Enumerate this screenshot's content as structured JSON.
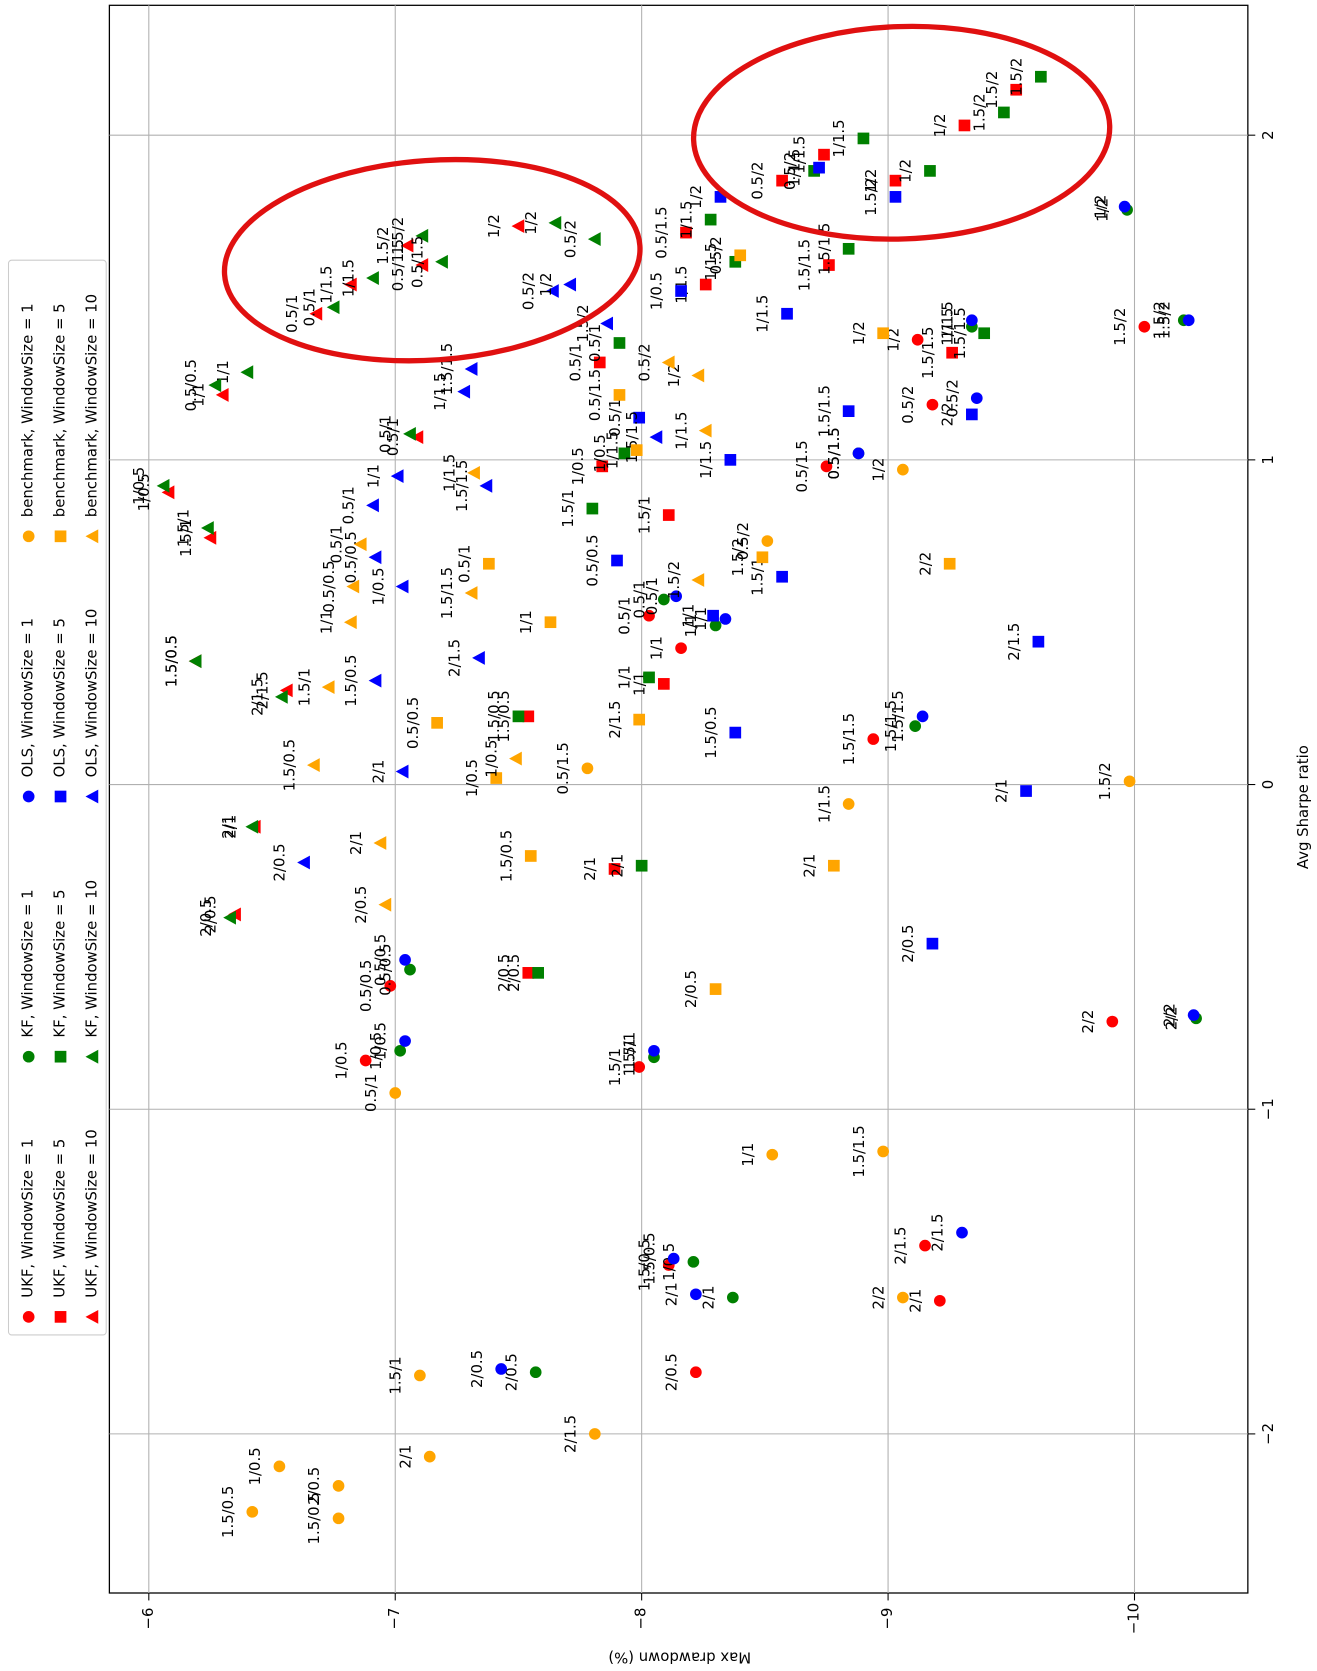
{
  "chart_data": {
    "type": "scatter",
    "xlabel": "Avg Sharpe ratio",
    "ylabel": "Max drawdown (%)",
    "xlim": [
      -2.49,
      2.4
    ],
    "ylim": [
      -5.84,
      -10.46
    ],
    "xticks": [
      {
        "value": -2,
        "label": "−2"
      },
      {
        "value": -1,
        "label": "−1"
      },
      0,
      1,
      2
    ],
    "yticks": [
      {
        "value": -6,
        "label": "−6"
      },
      {
        "value": -7,
        "label": "−7"
      },
      {
        "value": -8,
        "label": "−8"
      },
      {
        "value": -9,
        "label": "−9"
      },
      {
        "value": -10,
        "label": "−10"
      }
    ],
    "grid": true,
    "legend": "upper left",
    "series": [
      {
        "name": "UKF, WindowSize = 1",
        "color": "#ff0000",
        "marker": "o",
        "labels": [
          "2/0.5",
          "1.5/0.5",
          "2/1",
          "2/1.5",
          "1/0.5",
          "0.5/0.5",
          "1.5/1",
          "2/2",
          "1/1",
          "0.5/1",
          "1.5/1.5",
          "1/2",
          "0.5/2",
          "1.5/2",
          "0.5/1.5"
        ],
        "x": [
          -1.81,
          -1.48,
          -1.59,
          -1.42,
          -0.85,
          -0.62,
          -0.87,
          -0.73,
          0.42,
          0.52,
          0.14,
          1.37,
          1.17,
          1.41,
          0.98
        ],
        "values": [
          -8.22,
          -8.11,
          -9.21,
          -9.15,
          -6.88,
          -6.98,
          -7.99,
          -9.91,
          -8.16,
          -8.03,
          -8.94,
          -9.12,
          -9.18,
          -10.04,
          -8.75
        ]
      },
      {
        "name": "UKF, WindowSize = 5",
        "color": "#ff0000",
        "marker": "s",
        "labels": [
          "2/0.5",
          "2/1",
          "1.5/0.5",
          "1/1",
          "1.5/1",
          "1/0.5",
          "0.5/1",
          "1/1.5",
          "0.5/1.5",
          "1.5/1.5",
          "0.5/2",
          "1/1.5",
          "1/2",
          "1/2",
          "1.5/2",
          "1.5/1.5"
        ],
        "x": [
          -0.58,
          -0.26,
          0.21,
          0.31,
          0.83,
          0.98,
          1.3,
          1.54,
          1.7,
          1.6,
          1.86,
          1.94,
          1.86,
          2.03,
          2.14,
          1.33
        ],
        "values": [
          -7.54,
          -7.89,
          -7.54,
          -8.09,
          -8.11,
          -7.84,
          -7.83,
          -8.26,
          -8.18,
          -8.76,
          -8.57,
          -8.74,
          -9.03,
          -9.31,
          -9.52,
          -9.26
        ]
      },
      {
        "name": "UKF, WindowSize = 10",
        "color": "#ff0000",
        "marker": "^",
        "labels": [
          "0.5/1",
          "1/1.5",
          "1.5/2",
          "0.5/1.5",
          "1/2",
          "1/0.5",
          "1.5/1",
          "1.5/0.5",
          "2/1.5",
          "2/1",
          "2/0.5",
          "1/1",
          "0.5/1"
        ],
        "x": [
          1.45,
          1.54,
          1.66,
          1.6,
          1.72,
          0.9,
          0.76,
          0.38,
          0.29,
          -0.13,
          -0.4,
          1.2,
          1.07
        ],
        "values": [
          -6.68,
          -6.82,
          -7.05,
          -7.11,
          -7.5,
          -6.08,
          -6.25,
          -6.19,
          -6.56,
          -6.43,
          -6.35,
          -6.3,
          -7.09
        ]
      },
      {
        "name": "KF, WindowSize = 1",
        "color": "#008000",
        "marker": "o",
        "labels": [
          "2/0.5",
          "1/0.5",
          "2/1",
          "1/0.5",
          "0.5/0.5",
          "1.5/1",
          "2/2",
          "1/1",
          "0.5/1",
          "1.5/1.5",
          "1/2",
          "1/1.5",
          "1.5/2",
          "0.5/1.5"
        ],
        "x": [
          -1.81,
          -1.47,
          -1.58,
          -0.82,
          -0.57,
          -0.84,
          -0.72,
          0.49,
          0.57,
          0.18,
          1.77,
          1.41,
          1.43,
          1.02
        ],
        "values": [
          -7.57,
          -8.21,
          -8.37,
          -7.02,
          -7.06,
          -8.05,
          -10.25,
          -8.3,
          -8.09,
          -9.11,
          -9.97,
          -9.34,
          -10.2,
          -8.88
        ]
      },
      {
        "name": "KF, WindowSize = 5",
        "color": "#008000",
        "marker": "s",
        "labels": [
          "2/0.5",
          "2/1",
          "1.5/0.5",
          "1/1",
          "1.5/1",
          "1/0.5",
          "0.5/1",
          "1/1.5",
          "1/1.5",
          "1.5/1.5",
          "0.5/2",
          "1/1.5",
          "1/2",
          "1.5/2",
          "1.5/2",
          "1.5/1.5"
        ],
        "x": [
          -0.58,
          -0.25,
          0.21,
          0.33,
          0.85,
          1.02,
          1.36,
          1.74,
          1.61,
          1.65,
          1.89,
          1.99,
          1.89,
          2.07,
          2.18,
          1.39
        ],
        "values": [
          -7.58,
          -8.0,
          -7.5,
          -8.03,
          -7.8,
          -7.93,
          -7.91,
          -8.28,
          -8.38,
          -8.84,
          -8.7,
          -8.9,
          -9.17,
          -9.47,
          -9.62,
          -9.39
        ]
      },
      {
        "name": "KF, WindowSize = 10",
        "color": "#008000",
        "marker": "^",
        "labels": [
          "0.5/1",
          "1/1.5",
          "1.5/2",
          "0.5/1.5",
          "1/2",
          "0.5/2",
          "1/0.5",
          "1.5/1",
          "1.5/0.5",
          "2/1.5",
          "2/1",
          "2/0.5",
          "1/1",
          "0.5/0.5",
          "0.5/1"
        ],
        "x": [
          1.47,
          1.56,
          1.69,
          1.61,
          1.73,
          1.68,
          0.92,
          0.79,
          0.38,
          0.27,
          -0.13,
          -0.41,
          1.27,
          1.23,
          1.08
        ],
        "values": [
          -6.75,
          -6.91,
          -7.11,
          -7.19,
          -7.65,
          -7.81,
          -6.06,
          -6.24,
          -6.19,
          -6.54,
          -6.42,
          -6.33,
          -6.4,
          -6.27,
          -7.06
        ]
      },
      {
        "name": "OLS, WindowSize = 1",
        "color": "#0000ff",
        "marker": "o",
        "labels": [
          "2/0.5",
          "1.5/0.5",
          "2/1",
          "2/1.5",
          "1/0.5",
          "0.5/0.5",
          "1.5/1",
          "2/2",
          "1/1",
          "0.5/1",
          "1.5/1.5",
          "1/2",
          "1/1.5",
          "1.5/2",
          "0.5/2",
          "0.5/1.5"
        ],
        "x": [
          -1.8,
          -1.46,
          -1.57,
          -1.38,
          -0.79,
          -0.54,
          -0.82,
          -0.71,
          0.51,
          0.58,
          0.21,
          1.78,
          1.43,
          1.43,
          1.19,
          1.02
        ],
        "values": [
          -7.43,
          -8.13,
          -8.22,
          -9.3,
          -7.04,
          -7.04,
          -8.05,
          -10.24,
          -8.34,
          -8.14,
          -9.14,
          -9.96,
          -9.34,
          -10.22,
          -9.36,
          -8.88
        ]
      },
      {
        "name": "OLS, WindowSize = 5",
        "color": "#0000ff",
        "marker": "s",
        "labels": [
          "2/0.5",
          "2/1",
          "1.5/0.5",
          "2/1.5",
          "0.5/0.5",
          "1.5/1",
          "1/1",
          "1/1.5",
          "1.5/1.5",
          "0.5/1",
          "1/1.5",
          "1/0.5",
          "1/2",
          "1/1.5",
          "1.5/2",
          "2/2"
        ],
        "x": [
          -0.49,
          -0.02,
          0.16,
          0.44,
          0.69,
          0.64,
          0.52,
          1.0,
          1.15,
          1.13,
          1.45,
          1.52,
          1.81,
          1.9,
          1.81,
          1.14
        ],
        "values": [
          -9.18,
          -9.56,
          -8.38,
          -9.61,
          -7.9,
          -8.57,
          -8.29,
          -8.36,
          -8.84,
          -7.99,
          -8.59,
          -8.16,
          -8.32,
          -8.72,
          -9.03,
          -9.34
        ]
      },
      {
        "name": "OLS, WindowSize = 10",
        "color": "#0000ff",
        "marker": "^",
        "labels": [
          "2/0.5",
          "2/1",
          "1.5/0.5",
          "2/1.5",
          "1/0.5",
          "0.5/0.5",
          "0.5/1",
          "1/1",
          "1.5/1.5",
          "1/1.5",
          "1.5/1.5",
          "0.5/2",
          "1/2",
          "1.5/2",
          "1.5/1.5"
        ],
        "x": [
          -0.24,
          0.04,
          0.32,
          0.39,
          0.61,
          0.7,
          0.86,
          0.95,
          0.92,
          1.21,
          1.28,
          1.52,
          1.54,
          1.42,
          1.07
        ],
        "values": [
          -6.63,
          -7.03,
          -6.92,
          -7.34,
          -7.03,
          -6.92,
          -6.91,
          -7.01,
          -7.37,
          -7.28,
          -7.31,
          -7.64,
          -7.71,
          -7.86,
          -8.06
        ]
      },
      {
        "name": "benchmark, WindowSize = 1",
        "color": "#ffa500",
        "marker": "o",
        "labels": [
          "1/0.5",
          "1.5/0.5",
          "2/0.5",
          "1.5/0.5",
          "2/1",
          "1.5/1",
          "2/1.5",
          "1/1",
          "1.5/1.5",
          "2/2",
          "0.5/1",
          "1/1.5",
          "1.5/2",
          "0.5/1.5",
          "1/2",
          "0.5/2"
        ],
        "x": [
          -2.1,
          -2.24,
          -2.16,
          -2.26,
          -2.07,
          -1.82,
          -2.0,
          -1.14,
          -1.13,
          -1.58,
          -0.95,
          -0.06,
          0.01,
          0.05,
          0.97,
          0.75
        ],
        "values": [
          -6.53,
          -6.42,
          -6.77,
          -6.77,
          -7.14,
          -7.1,
          -7.81,
          -8.53,
          -8.98,
          -9.06,
          -7.0,
          -8.84,
          -9.98,
          -7.78,
          -9.06,
          -8.51
        ]
      },
      {
        "name": "benchmark, WindowSize = 5",
        "color": "#ffa500",
        "marker": "s",
        "labels": [
          "2/0.5",
          "2/1",
          "1.5/0.5",
          "2/1.5",
          "0.5/0.5",
          "1/0.5",
          "1/1",
          "0.5/1",
          "1.5/2",
          "2/2",
          "1/1.5",
          "0.5/1.5",
          "1/2",
          "0.5/2"
        ],
        "x": [
          -0.63,
          -0.25,
          -0.22,
          0.2,
          0.19,
          0.02,
          0.5,
          0.68,
          0.7,
          0.68,
          1.03,
          1.2,
          1.39,
          1.63
        ],
        "values": [
          -8.3,
          -8.78,
          -7.55,
          -7.99,
          -7.17,
          -7.41,
          -7.63,
          -7.38,
          -8.49,
          -9.25,
          -7.98,
          -7.91,
          -8.98,
          -8.4
        ]
      },
      {
        "name": "benchmark, WindowSize = 10",
        "color": "#ffa500",
        "marker": "^",
        "labels": [
          "1.5/0.5",
          "2/1",
          "2/0.5",
          "1/0.5",
          "1.5/1",
          "1/1",
          "0.5/0.5",
          "0.5/1",
          "1.5/1.5",
          "1/1.5",
          "1.5/2",
          "1/1.5",
          "1/2",
          "0.5/2"
        ],
        "x": [
          0.06,
          -0.18,
          -0.37,
          0.08,
          0.3,
          0.5,
          0.61,
          0.74,
          0.59,
          0.96,
          0.63,
          1.09,
          1.26,
          1.3
        ],
        "values": [
          -6.67,
          -6.94,
          -6.96,
          -7.49,
          -6.73,
          -6.82,
          -6.83,
          -6.86,
          -7.31,
          -7.32,
          -8.23,
          -8.26,
          -8.23,
          -8.11
        ]
      }
    ]
  }
}
